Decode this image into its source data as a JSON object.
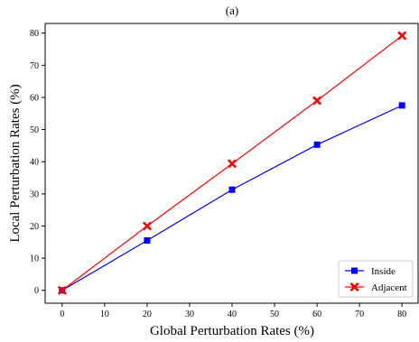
{
  "chart_data": {
    "type": "line",
    "title": "(a)",
    "xlabel": "Global Perturbation Rates (%)",
    "ylabel": "Local Perturbation Rates (%)",
    "xlim": [
      -4,
      84
    ],
    "ylim": [
      -4,
      83
    ],
    "xticks": [
      0,
      10,
      20,
      30,
      40,
      50,
      60,
      70,
      80
    ],
    "yticks": [
      0,
      10,
      20,
      30,
      40,
      50,
      60,
      70,
      80
    ],
    "grid": false,
    "legend_position": "bottom-right",
    "x": [
      0,
      20,
      40,
      60,
      80
    ],
    "series": [
      {
        "name": "Inside",
        "values": [
          0,
          15.5,
          31.3,
          45.3,
          57.5
        ],
        "color": "#0000ff",
        "marker": "square"
      },
      {
        "name": "Adjacent",
        "values": [
          0,
          20.0,
          39.4,
          59.0,
          79.2
        ],
        "color": "#ff0000",
        "marker": "x"
      }
    ]
  }
}
